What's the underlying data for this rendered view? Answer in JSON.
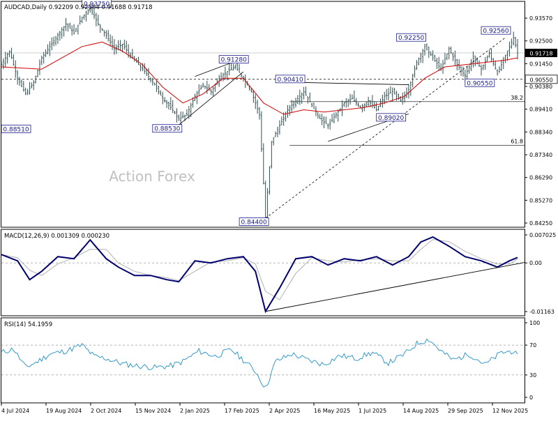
{
  "chart_data": {
    "type": "ohlc",
    "symbol_title": "AUDCAD,Daily",
    "ohlc_readout": [
      "0.92209",
      "0.92564",
      "0.91688",
      "0.91718"
    ],
    "last_price": "0.91718",
    "watermark": "Action Forex",
    "price_axis": {
      "ylim": [
        0.84,
        0.94
      ],
      "ticks": [
        "0.93570",
        "0.92500",
        "0.91450",
        "0.90380",
        "0.89410",
        "0.88340",
        "0.87340",
        "0.86290",
        "0.85270",
        "0.84250"
      ]
    },
    "date_labels": [
      "4 Jul 2024",
      "19 Aug 2024",
      "2 Oct 2024",
      "15 Nov 2024",
      "2 Jan 2025",
      "17 Feb 2025",
      "2 Apr 2025",
      "16 May 2025",
      "1 Jul 2025",
      "14 Aug 2025",
      "29 Sep 2025",
      "12 Nov 2025"
    ],
    "price_labels": [
      {
        "text": "0.93750",
        "value": 0.9375
      },
      {
        "text": "0.88510",
        "value": 0.8851
      },
      {
        "text": "0.88530",
        "value": 0.8853
      },
      {
        "text": "0.91280",
        "value": 0.9128
      },
      {
        "text": "0.90410",
        "value": 0.9041
      },
      {
        "text": "0.84400",
        "value": 0.844
      },
      {
        "text": "0.89020",
        "value": 0.8902
      },
      {
        "text": "0.92250",
        "value": 0.9225
      },
      {
        "text": "0.92560",
        "value": 0.9256
      },
      {
        "text": "0.90550",
        "value": 0.9055
      }
    ],
    "fib_levels": [
      {
        "label": "38.2",
        "value": 0.8956
      },
      {
        "label": "61.8",
        "value": 0.8762
      }
    ],
    "horizontal_line": {
      "value": 0.9055,
      "label": "0.90550"
    },
    "price_series": [
      {
        "x": 0,
        "close": 0.912
      },
      {
        "x": 4,
        "close": 0.918
      },
      {
        "x": 8,
        "close": 0.906
      },
      {
        "x": 12,
        "close": 0.899
      },
      {
        "x": 16,
        "close": 0.904
      },
      {
        "x": 20,
        "close": 0.915
      },
      {
        "x": 24,
        "close": 0.92
      },
      {
        "x": 28,
        "close": 0.925
      },
      {
        "x": 32,
        "close": 0.93
      },
      {
        "x": 36,
        "close": 0.926
      },
      {
        "x": 40,
        "close": 0.933
      },
      {
        "x": 44,
        "close": 0.937
      },
      {
        "x": 48,
        "close": 0.93
      },
      {
        "x": 52,
        "close": 0.925
      },
      {
        "x": 56,
        "close": 0.919
      },
      {
        "x": 60,
        "close": 0.921
      },
      {
        "x": 64,
        "close": 0.916
      },
      {
        "x": 68,
        "close": 0.912
      },
      {
        "x": 72,
        "close": 0.908
      },
      {
        "x": 76,
        "close": 0.903
      },
      {
        "x": 80,
        "close": 0.897
      },
      {
        "x": 84,
        "close": 0.893
      },
      {
        "x": 88,
        "close": 0.888
      },
      {
        "x": 92,
        "close": 0.89
      },
      {
        "x": 96,
        "close": 0.898
      },
      {
        "x": 100,
        "close": 0.903
      },
      {
        "x": 104,
        "close": 0.9
      },
      {
        "x": 108,
        "close": 0.906
      },
      {
        "x": 112,
        "close": 0.909
      },
      {
        "x": 116,
        "close": 0.911
      },
      {
        "x": 120,
        "close": 0.906
      },
      {
        "x": 124,
        "close": 0.9
      },
      {
        "x": 128,
        "close": 0.89
      },
      {
        "x": 131,
        "close": 0.844
      },
      {
        "x": 134,
        "close": 0.878
      },
      {
        "x": 138,
        "close": 0.885
      },
      {
        "x": 142,
        "close": 0.892
      },
      {
        "x": 146,
        "close": 0.896
      },
      {
        "x": 150,
        "close": 0.9
      },
      {
        "x": 154,
        "close": 0.894
      },
      {
        "x": 158,
        "close": 0.888
      },
      {
        "x": 162,
        "close": 0.885
      },
      {
        "x": 166,
        "close": 0.89
      },
      {
        "x": 170,
        "close": 0.895
      },
      {
        "x": 174,
        "close": 0.897
      },
      {
        "x": 178,
        "close": 0.893
      },
      {
        "x": 182,
        "close": 0.896
      },
      {
        "x": 186,
        "close": 0.892
      },
      {
        "x": 190,
        "close": 0.898
      },
      {
        "x": 194,
        "close": 0.9
      },
      {
        "x": 198,
        "close": 0.896
      },
      {
        "x": 202,
        "close": 0.901
      },
      {
        "x": 206,
        "close": 0.913
      },
      {
        "x": 210,
        "close": 0.92
      },
      {
        "x": 214,
        "close": 0.915
      },
      {
        "x": 218,
        "close": 0.91
      },
      {
        "x": 222,
        "close": 0.919
      },
      {
        "x": 226,
        "close": 0.912
      },
      {
        "x": 230,
        "close": 0.907
      },
      {
        "x": 234,
        "close": 0.915
      },
      {
        "x": 238,
        "close": 0.91
      },
      {
        "x": 242,
        "close": 0.917
      },
      {
        "x": 246,
        "close": 0.908
      },
      {
        "x": 250,
        "close": 0.916
      },
      {
        "x": 254,
        "close": 0.924
      },
      {
        "x": 256,
        "close": 0.9172
      }
    ],
    "ma_series": [
      {
        "x": 0,
        "value": 0.911
      },
      {
        "x": 20,
        "value": 0.91
      },
      {
        "x": 40,
        "value": 0.92
      },
      {
        "x": 50,
        "value": 0.922
      },
      {
        "x": 60,
        "value": 0.918
      },
      {
        "x": 70,
        "value": 0.912
      },
      {
        "x": 80,
        "value": 0.902
      },
      {
        "x": 90,
        "value": 0.895
      },
      {
        "x": 100,
        "value": 0.899
      },
      {
        "x": 110,
        "value": 0.906
      },
      {
        "x": 120,
        "value": 0.906
      },
      {
        "x": 130,
        "value": 0.895
      },
      {
        "x": 140,
        "value": 0.89
      },
      {
        "x": 150,
        "value": 0.892
      },
      {
        "x": 160,
        "value": 0.891
      },
      {
        "x": 170,
        "value": 0.892
      },
      {
        "x": 180,
        "value": 0.893
      },
      {
        "x": 190,
        "value": 0.895
      },
      {
        "x": 200,
        "value": 0.898
      },
      {
        "x": 210,
        "value": 0.906
      },
      {
        "x": 220,
        "value": 0.911
      },
      {
        "x": 230,
        "value": 0.912
      },
      {
        "x": 240,
        "value": 0.913
      },
      {
        "x": 250,
        "value": 0.914
      },
      {
        "x": 256,
        "value": 0.915
      }
    ],
    "macd": {
      "label": "MACD(12,26,9) 0.001309 0.000230",
      "ylim": [
        -0.01163,
        0.007025
      ],
      "ticks": [
        "0.007025",
        "0.00",
        "-0.01163"
      ],
      "macd_series": [
        {
          "x": 0,
          "value": 0.002
        },
        {
          "x": 8,
          "value": 0.0005
        },
        {
          "x": 14,
          "value": -0.004
        },
        {
          "x": 20,
          "value": -0.002
        },
        {
          "x": 28,
          "value": 0.0015
        },
        {
          "x": 36,
          "value": 0.001
        },
        {
          "x": 44,
          "value": 0.0055
        },
        {
          "x": 52,
          "value": 0.001
        },
        {
          "x": 58,
          "value": -0.001
        },
        {
          "x": 66,
          "value": -0.003
        },
        {
          "x": 74,
          "value": -0.003
        },
        {
          "x": 82,
          "value": -0.004
        },
        {
          "x": 88,
          "value": -0.0045
        },
        {
          "x": 96,
          "value": 0.0005
        },
        {
          "x": 104,
          "value": 0.0
        },
        {
          "x": 112,
          "value": 0.001
        },
        {
          "x": 120,
          "value": 0.0015
        },
        {
          "x": 126,
          "value": -0.002
        },
        {
          "x": 131,
          "value": -0.0116
        },
        {
          "x": 138,
          "value": -0.006
        },
        {
          "x": 146,
          "value": 0.001
        },
        {
          "x": 154,
          "value": 0.0015
        },
        {
          "x": 162,
          "value": -0.0005
        },
        {
          "x": 170,
          "value": 0.001
        },
        {
          "x": 178,
          "value": 0.0005
        },
        {
          "x": 186,
          "value": 0.0015
        },
        {
          "x": 194,
          "value": -0.0005
        },
        {
          "x": 202,
          "value": 0.0015
        },
        {
          "x": 208,
          "value": 0.005
        },
        {
          "x": 214,
          "value": 0.0062
        },
        {
          "x": 222,
          "value": 0.004
        },
        {
          "x": 230,
          "value": 0.0015
        },
        {
          "x": 238,
          "value": 0.0005
        },
        {
          "x": 246,
          "value": -0.001
        },
        {
          "x": 252,
          "value": 0.0005
        },
        {
          "x": 256,
          "value": 0.0013
        }
      ]
    },
    "rsi": {
      "label": "RSI(14) 54.1959",
      "ylim": [
        0,
        100
      ],
      "ticks": [
        "100",
        "70",
        "30",
        "0"
      ],
      "rsi_series": [
        {
          "x": 0,
          "value": 60
        },
        {
          "x": 6,
          "value": 65
        },
        {
          "x": 12,
          "value": 40
        },
        {
          "x": 18,
          "value": 48
        },
        {
          "x": 24,
          "value": 58
        },
        {
          "x": 32,
          "value": 62
        },
        {
          "x": 40,
          "value": 70
        },
        {
          "x": 46,
          "value": 55
        },
        {
          "x": 52,
          "value": 52
        },
        {
          "x": 60,
          "value": 45
        },
        {
          "x": 68,
          "value": 42
        },
        {
          "x": 76,
          "value": 40
        },
        {
          "x": 84,
          "value": 42
        },
        {
          "x": 90,
          "value": 48
        },
        {
          "x": 98,
          "value": 62
        },
        {
          "x": 106,
          "value": 55
        },
        {
          "x": 114,
          "value": 64
        },
        {
          "x": 120,
          "value": 50
        },
        {
          "x": 126,
          "value": 35
        },
        {
          "x": 131,
          "value": 12
        },
        {
          "x": 136,
          "value": 48
        },
        {
          "x": 144,
          "value": 58
        },
        {
          "x": 152,
          "value": 50
        },
        {
          "x": 160,
          "value": 44
        },
        {
          "x": 168,
          "value": 56
        },
        {
          "x": 176,
          "value": 52
        },
        {
          "x": 184,
          "value": 60
        },
        {
          "x": 192,
          "value": 46
        },
        {
          "x": 200,
          "value": 58
        },
        {
          "x": 206,
          "value": 72
        },
        {
          "x": 212,
          "value": 78
        },
        {
          "x": 218,
          "value": 62
        },
        {
          "x": 224,
          "value": 50
        },
        {
          "x": 232,
          "value": 58
        },
        {
          "x": 240,
          "value": 44
        },
        {
          "x": 248,
          "value": 60
        },
        {
          "x": 254,
          "value": 62
        },
        {
          "x": 256,
          "value": 54
        }
      ]
    },
    "colors": {
      "bars": "#2f4f4f",
      "ma": "#d40000",
      "macd": "#00006e",
      "signal": "#b0b0b0",
      "rsi": "#1e90c8",
      "label_box": "#1a1a8c"
    }
  }
}
